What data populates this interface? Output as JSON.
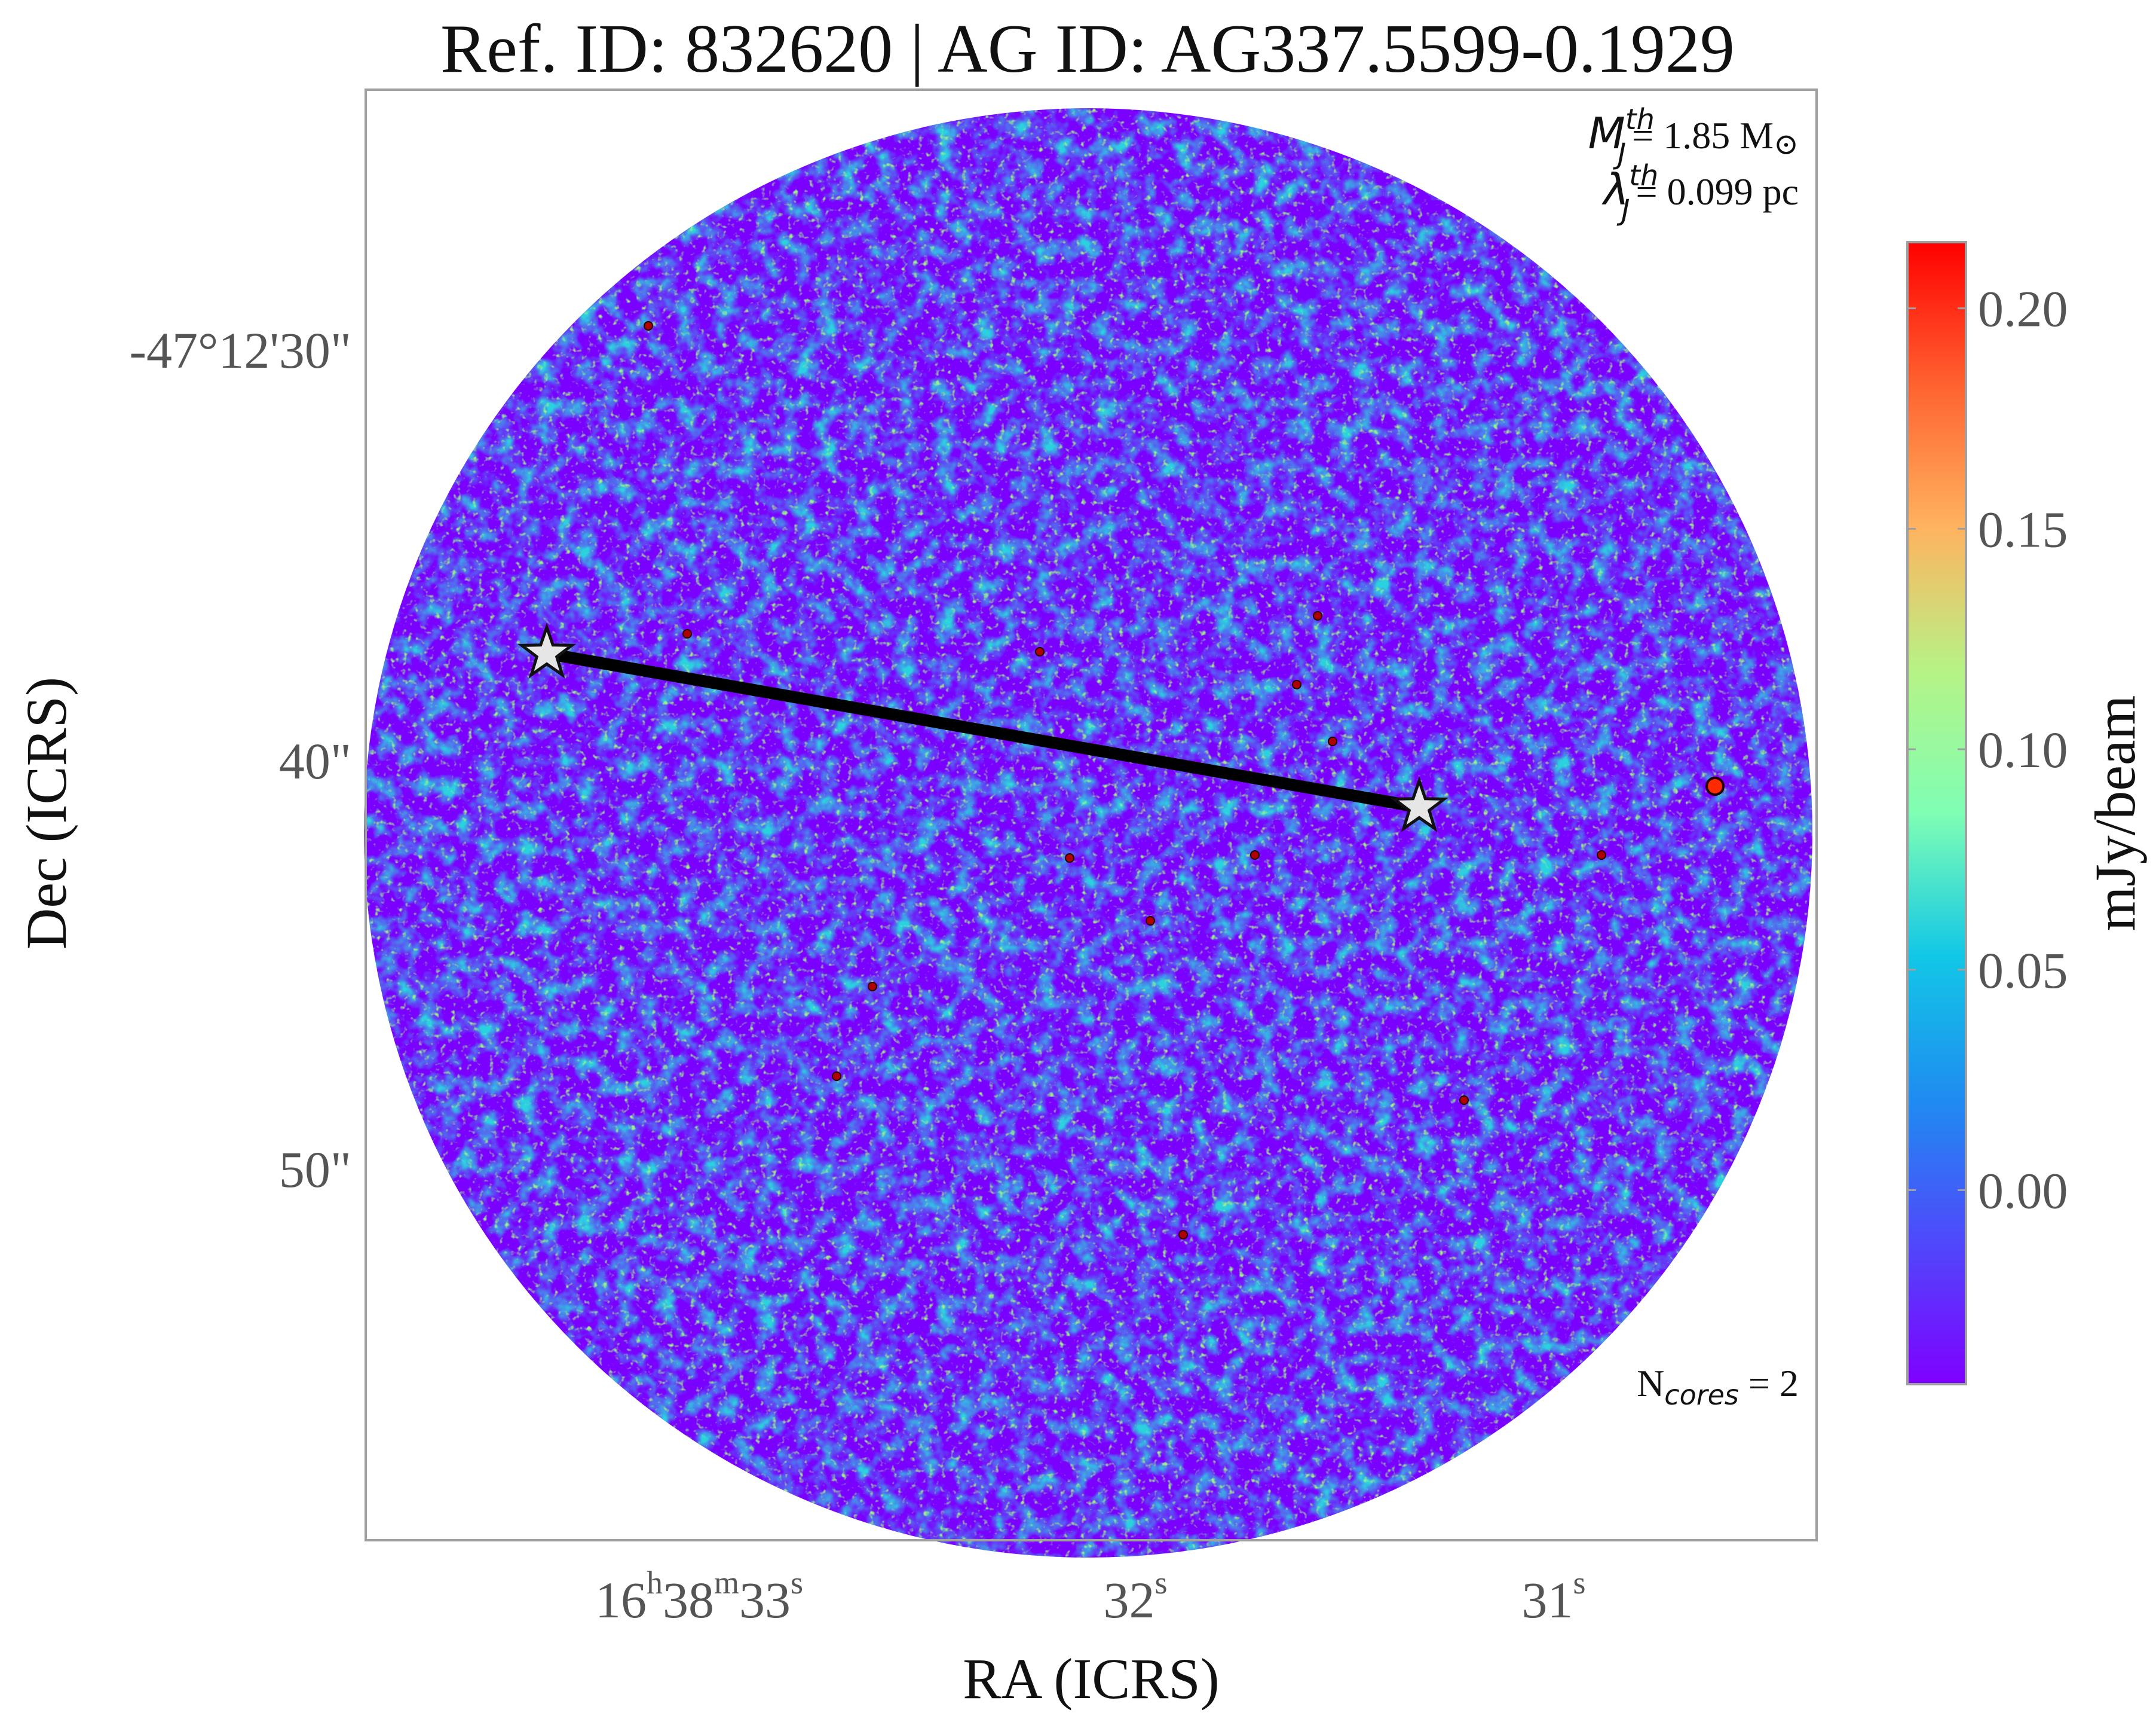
{
  "title": "Ref. ID: 832620 | AG ID: AG337.5599-0.1929",
  "axes": {
    "xlabel": "RA (ICRS)",
    "ylabel": "Dec (ICRS)",
    "xticks": [
      {
        "h": "16",
        "m": "38",
        "s": "33",
        "hu": "h",
        "mu": "m",
        "su": "s"
      },
      {
        "s": "32",
        "su": "s"
      },
      {
        "s": "31",
        "su": "s"
      }
    ],
    "yticks": [
      "-47°12'30\"",
      "40\"",
      "50\""
    ]
  },
  "annotations": {
    "mass_symbol": "M",
    "mass_sub": "J",
    "mass_sup": "th",
    "mass_value": "= 1.85 M",
    "mass_sun": "⊙",
    "length_symbol": "λ",
    "length_sub": "J",
    "length_sup": "th",
    "length_value": "= 0.099 pc",
    "cores_symbol": "N",
    "cores_sub": "cores",
    "cores_value": " = 2"
  },
  "colorbar": {
    "label": "mJy/beam",
    "ticks": [
      "0.20",
      "0.15",
      "0.10",
      "0.05",
      "0.00"
    ],
    "colormap": "rainbow",
    "min": -0.044,
    "max": 0.215
  },
  "cores": [
    {
      "marker": "star-icon"
    },
    {
      "marker": "star-icon"
    }
  ],
  "colors": {
    "frame": "#a0a0a0",
    "connector": "#000000",
    "star_fill": "#e6e6e6"
  }
}
